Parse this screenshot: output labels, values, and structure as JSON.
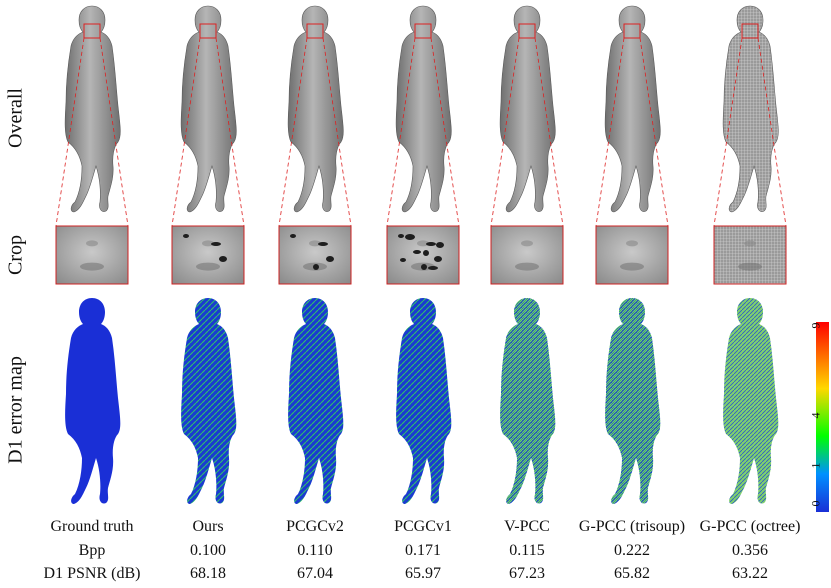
{
  "row_labels": {
    "overall": "Overall",
    "crop": "Crop",
    "error_map": "D1  error map"
  },
  "methods": [
    {
      "name": "Ground truth",
      "bpp": "",
      "psnr": ""
    },
    {
      "name": "Ours",
      "bpp": "0.100",
      "psnr": "68.18"
    },
    {
      "name": "PCGCv2",
      "bpp": "0.110",
      "psnr": "67.04"
    },
    {
      "name": "PCGCv1",
      "bpp": "0.171",
      "psnr": "65.97"
    },
    {
      "name": "V-PCC",
      "bpp": "0.115",
      "psnr": "67.23"
    },
    {
      "name": "G-PCC (trisoup)",
      "bpp": "0.222",
      "psnr": "65.82"
    },
    {
      "name": "G-PCC (octree)",
      "bpp": "0.356",
      "psnr": "63.22"
    }
  ],
  "table_row_labels": {
    "bpp": "Bpp",
    "psnr": "D1 PSNR (dB)"
  },
  "colorbar": {
    "ticks": [
      "0",
      "1",
      "4",
      "9"
    ],
    "colors": [
      "#1a2fd6",
      "#00ff00",
      "#ffd800",
      "#ff0000"
    ]
  }
}
